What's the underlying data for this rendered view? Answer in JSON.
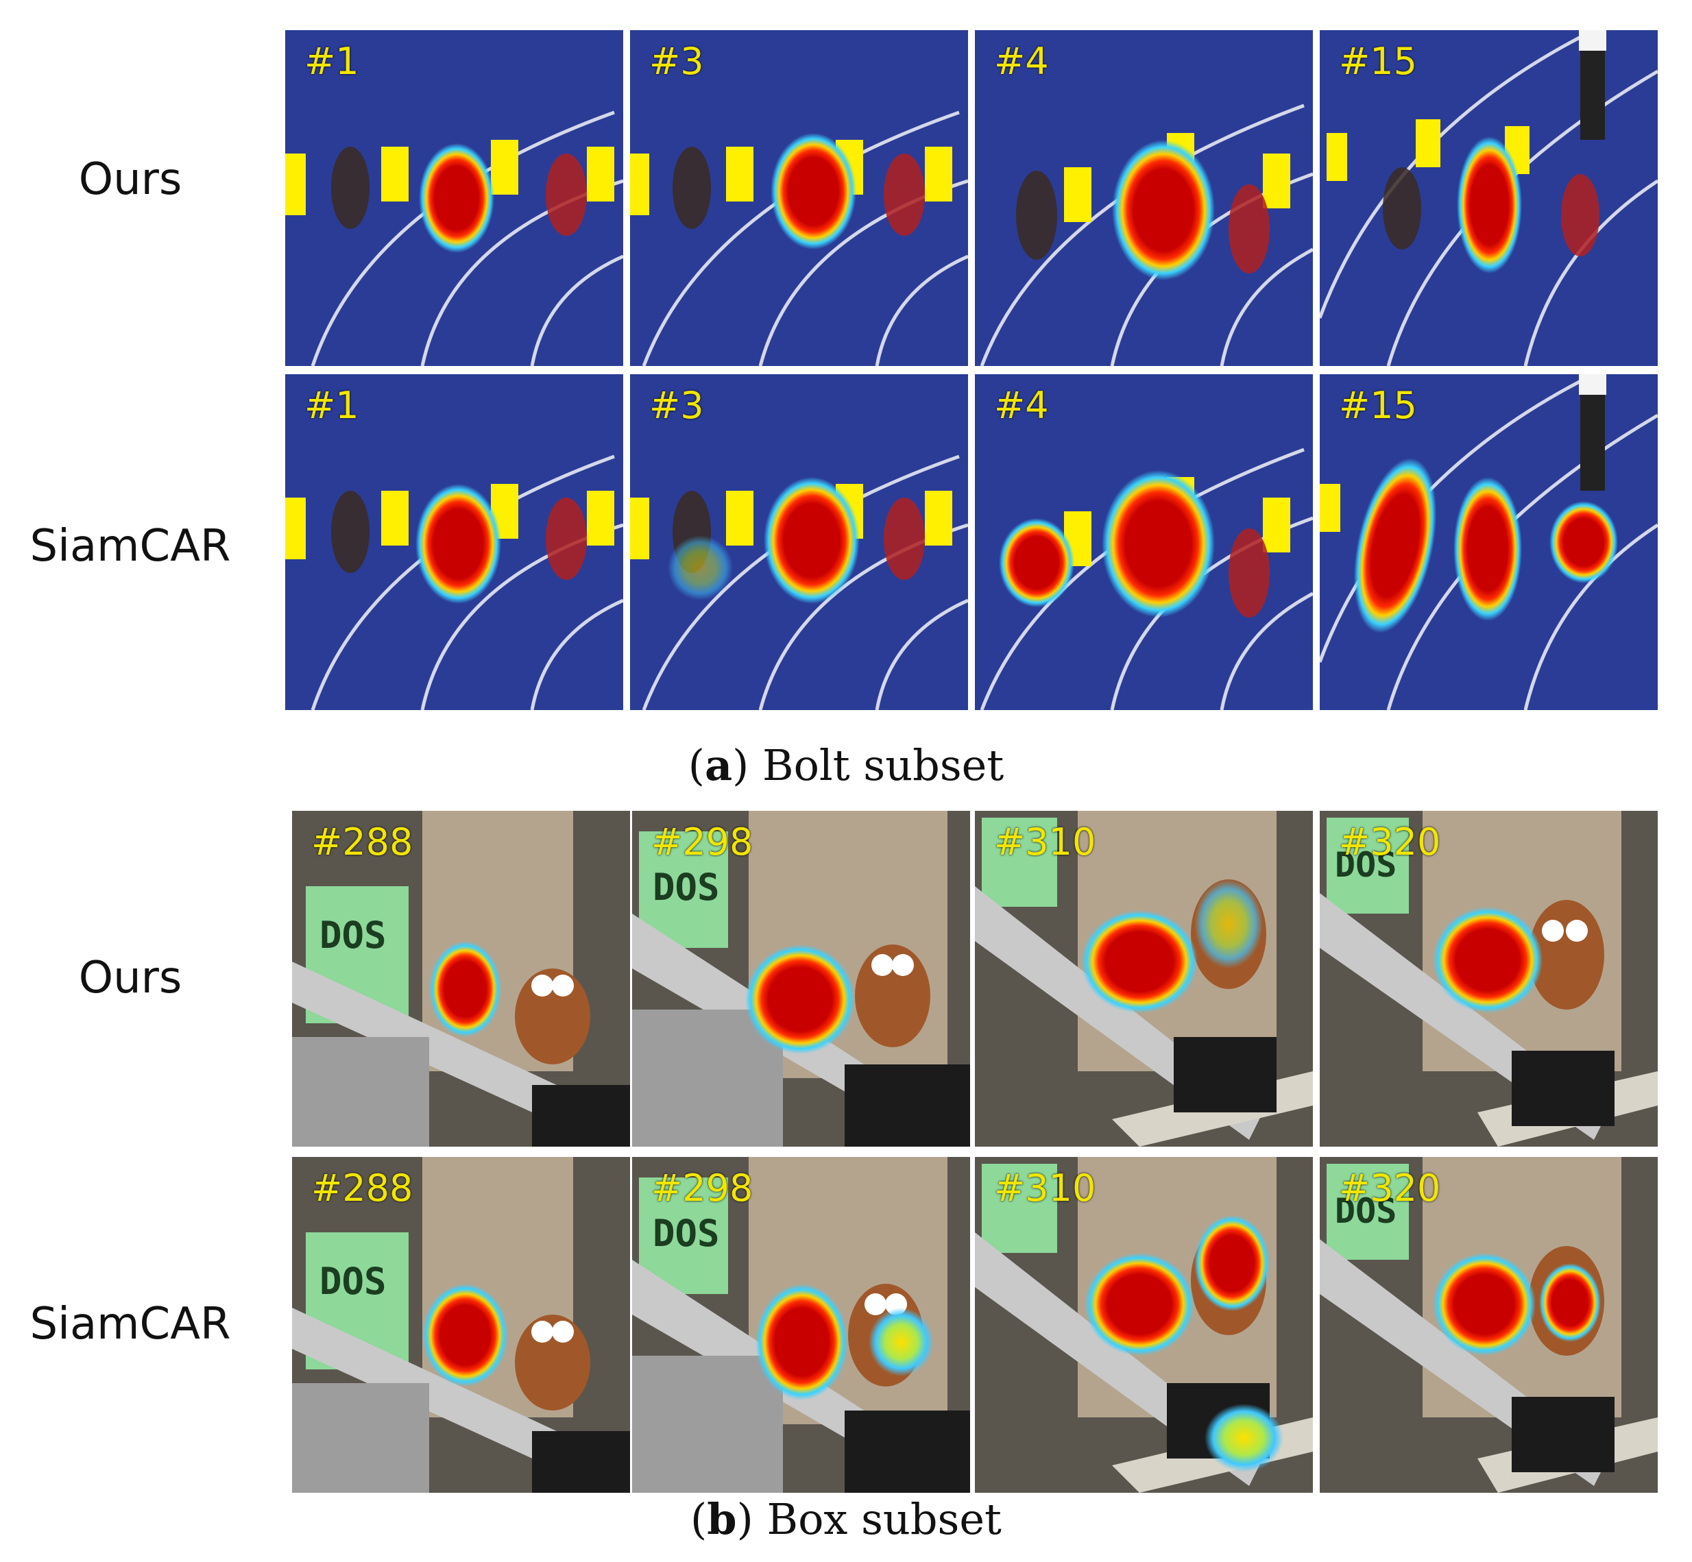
{
  "figure_a": {
    "row_labels": [
      "Ours",
      "SiamCAR"
    ],
    "frame_numbers": [
      "#1",
      "#3",
      "#4",
      "#15"
    ],
    "caption_letter": "a",
    "caption_text": "Bolt subset"
  },
  "figure_b": {
    "row_labels": [
      "Ours",
      "SiamCAR"
    ],
    "frame_numbers": [
      "#288",
      "#298",
      "#310",
      "#320"
    ],
    "caption_letter": "b",
    "caption_text": "Box subset",
    "sign_text": "DOS"
  },
  "colors": {
    "frame_number": "#f2e600",
    "track_blue": "#2b3c96",
    "heat_core": "#c80000"
  }
}
